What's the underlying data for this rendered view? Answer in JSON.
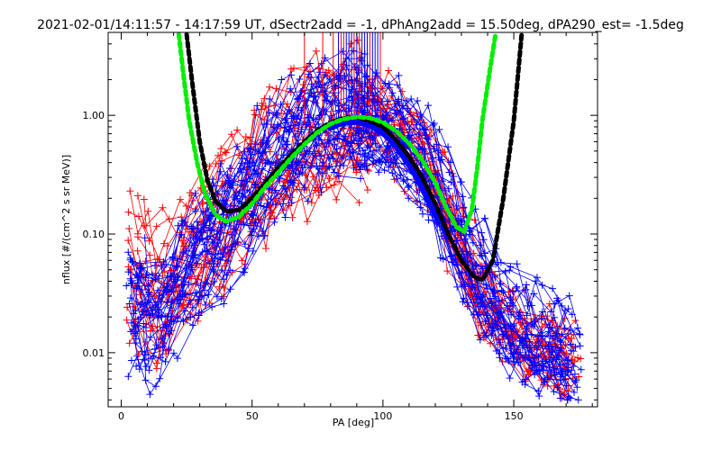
{
  "chart_data": {
    "type": "line",
    "title": "2021-02-01/14:11:57 - 14:17:59 UT, dSectr2add = -1, dPhAng2add = 15.50deg, dPA290_est=  -1.5deg",
    "xlabel": "PA [deg]",
    "ylabel": "nflux [#/(cm^2 s sr MeV)]",
    "xlim": [
      -5,
      182
    ],
    "ylim": [
      0.0035,
      5.0
    ],
    "y_scale": "log",
    "grid": false,
    "x_ticks": [
      0,
      50,
      100,
      150
    ],
    "x_tick_labels": [
      "0",
      "50",
      "100",
      "150"
    ],
    "y_ticks": [
      0.01,
      0.1,
      1.0
    ],
    "y_tick_labels": [
      "0.01",
      "0.10",
      "1.00"
    ],
    "colors": {
      "red_traces": "#ff0000",
      "blue_traces": "#0000ff",
      "black_fit": "#000000",
      "green_fit": "#00ee00",
      "blue_fit": "#0000ff"
    },
    "series": [
      {
        "style": "dashed-thick",
        "color": "#000000",
        "x": [
          25,
          27,
          30,
          33,
          36,
          40,
          45,
          50,
          55,
          60,
          65,
          70,
          75,
          80,
          85,
          90,
          95,
          100,
          105,
          110,
          115,
          120,
          125,
          130,
          135,
          138,
          142,
          146,
          150,
          153
        ],
        "y": [
          4.8,
          2.0,
          0.6,
          0.28,
          0.19,
          0.155,
          0.16,
          0.2,
          0.27,
          0.36,
          0.47,
          0.6,
          0.75,
          0.87,
          0.95,
          0.96,
          0.9,
          0.8,
          0.62,
          0.45,
          0.3,
          0.18,
          0.1,
          0.06,
          0.043,
          0.041,
          0.06,
          0.2,
          0.9,
          4.8
        ]
      },
      {
        "style": "dashed-thick",
        "color": "#00ee00",
        "x": [
          22,
          24,
          26,
          29,
          32,
          36,
          40,
          45,
          50,
          55,
          60,
          65,
          70,
          75,
          80,
          85,
          90,
          95,
          100,
          105,
          110,
          115,
          120,
          124,
          128,
          131,
          134,
          136,
          138,
          141,
          143
        ],
        "y": [
          4.8,
          2.0,
          0.9,
          0.4,
          0.22,
          0.145,
          0.128,
          0.14,
          0.18,
          0.25,
          0.33,
          0.44,
          0.57,
          0.72,
          0.85,
          0.93,
          0.97,
          0.95,
          0.87,
          0.74,
          0.58,
          0.42,
          0.27,
          0.17,
          0.115,
          0.105,
          0.16,
          0.35,
          0.9,
          2.5,
          4.8
        ]
      },
      {
        "style": "thick",
        "color": "#0000ff",
        "x": [
          80,
          83,
          86,
          89,
          92,
          95,
          98,
          101,
          104,
          107,
          110,
          113,
          116,
          119,
          122
        ],
        "y": [
          0.8,
          0.86,
          0.9,
          0.9,
          0.88,
          0.84,
          0.78,
          0.7,
          0.6,
          0.5,
          0.4,
          0.31,
          0.23,
          0.17,
          0.13
        ]
      }
    ],
    "spikes": {
      "y_top": 5.0,
      "red": [
        {
          "x": 70,
          "y": 0.85
        },
        {
          "x": 77,
          "y": 0.9
        },
        {
          "x": 81,
          "y": 0.92
        },
        {
          "x": 84,
          "y": 0.95
        },
        {
          "x": 85,
          "y": 0.92
        },
        {
          "x": 89,
          "y": 0.98
        },
        {
          "x": 91,
          "y": 0.95
        },
        {
          "x": 95,
          "y": 0.98
        },
        {
          "x": 99,
          "y": 0.92
        }
      ],
      "blue": [
        {
          "x": 83,
          "y": 0.9
        },
        {
          "x": 86,
          "y": 0.95
        },
        {
          "x": 87,
          "y": 0.9
        },
        {
          "x": 88,
          "y": 0.98
        },
        {
          "x": 90,
          "y": 1.0
        },
        {
          "x": 92,
          "y": 0.95
        },
        {
          "x": 93,
          "y": 1.0
        },
        {
          "x": 94,
          "y": 0.97
        },
        {
          "x": 96,
          "y": 0.98
        },
        {
          "x": 97,
          "y": 0.9
        },
        {
          "x": 98,
          "y": 0.95
        }
      ]
    },
    "trace_bundles": {
      "left_x": [
        5,
        8,
        12,
        16,
        20,
        24,
        28,
        32,
        36,
        40,
        44,
        48,
        52,
        56,
        60,
        64,
        68,
        72,
        76,
        80,
        84,
        88,
        92
      ],
      "right_x": [
        92,
        96,
        100,
        104,
        108,
        112,
        116,
        120,
        124,
        128,
        132,
        136,
        140,
        144,
        148,
        152,
        156,
        160,
        164,
        168,
        172
      ],
      "red_left_y": [
        0.065,
        0.04,
        0.035,
        0.03,
        0.045,
        0.06,
        0.08,
        0.1,
        0.12,
        0.15,
        0.2,
        0.26,
        0.32,
        0.4,
        0.5,
        0.55,
        0.62,
        0.68,
        0.74,
        0.82,
        0.88,
        0.92,
        0.9
      ],
      "red_right_y": [
        0.9,
        0.86,
        0.8,
        0.72,
        0.62,
        0.5,
        0.38,
        0.26,
        0.16,
        0.09,
        0.05,
        0.03,
        0.022,
        0.018,
        0.015,
        0.013,
        0.011,
        0.01,
        0.009,
        0.008,
        0.008
      ],
      "blue_left_y": [
        0.025,
        0.02,
        0.018,
        0.02,
        0.03,
        0.04,
        0.055,
        0.07,
        0.09,
        0.12,
        0.16,
        0.22,
        0.29,
        0.38,
        0.48,
        0.58,
        0.68,
        0.77,
        0.85,
        0.92,
        0.97,
        1.0,
        0.98
      ],
      "blue_right_y": [
        0.98,
        0.94,
        0.88,
        0.8,
        0.7,
        0.58,
        0.44,
        0.3,
        0.19,
        0.12,
        0.075,
        0.05,
        0.036,
        0.028,
        0.022,
        0.018,
        0.015,
        0.013,
        0.012,
        0.011,
        0.01
      ]
    }
  }
}
